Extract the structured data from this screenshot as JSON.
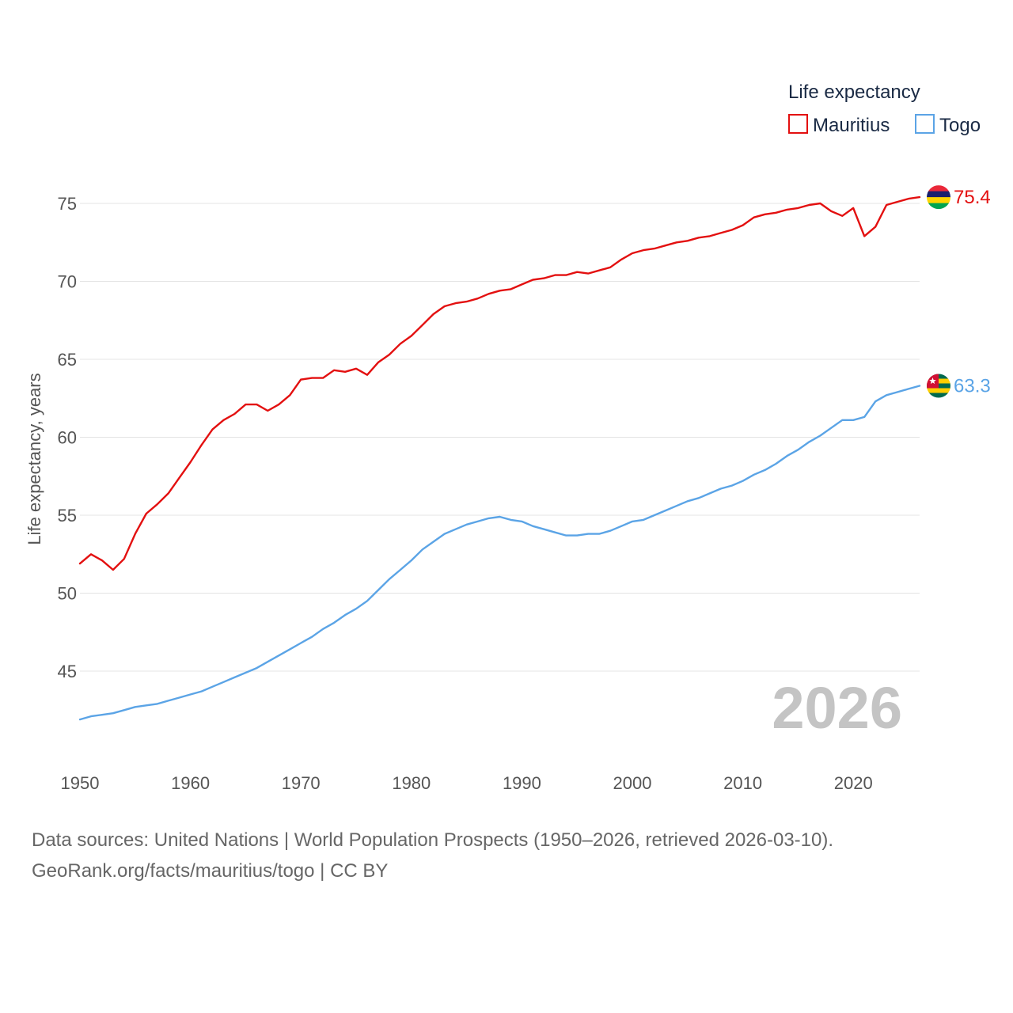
{
  "chart_data": {
    "type": "line",
    "title": "",
    "ylabel": "Life expectancy, years",
    "xlabel": "",
    "xlim": [
      1950,
      2026
    ],
    "ylim": [
      40,
      77
    ],
    "y_ticks": [
      45,
      50,
      55,
      60,
      65,
      70,
      75
    ],
    "x_ticks": [
      1950,
      1960,
      1970,
      1980,
      1990,
      2000,
      2010,
      2020
    ],
    "grid": "horizontal",
    "legend": {
      "title": "Life expectancy",
      "placement": "top-right"
    },
    "year_label": "2026",
    "series": [
      {
        "name": "Mauritius",
        "color": "#e31010",
        "end_label": "75.4",
        "flag": "mauritius-flag",
        "x": [
          1950,
          1951,
          1952,
          1953,
          1954,
          1955,
          1956,
          1957,
          1958,
          1959,
          1960,
          1961,
          1962,
          1963,
          1964,
          1965,
          1966,
          1967,
          1968,
          1969,
          1970,
          1971,
          1972,
          1973,
          1974,
          1975,
          1976,
          1977,
          1978,
          1979,
          1980,
          1981,
          1982,
          1983,
          1984,
          1985,
          1986,
          1987,
          1988,
          1989,
          1990,
          1991,
          1992,
          1993,
          1994,
          1995,
          1996,
          1997,
          1998,
          1999,
          2000,
          2001,
          2002,
          2003,
          2004,
          2005,
          2006,
          2007,
          2008,
          2009,
          2010,
          2011,
          2012,
          2013,
          2014,
          2015,
          2016,
          2017,
          2018,
          2019,
          2020,
          2021,
          2022,
          2023,
          2024,
          2025,
          2026
        ],
        "values": [
          51.9,
          52.5,
          52.1,
          51.5,
          52.2,
          53.8,
          55.1,
          55.7,
          56.4,
          57.4,
          58.4,
          59.5,
          60.5,
          61.1,
          61.5,
          62.1,
          62.1,
          61.7,
          62.1,
          62.7,
          63.7,
          63.8,
          63.8,
          64.3,
          64.2,
          64.4,
          64.0,
          64.8,
          65.3,
          66.0,
          66.5,
          67.2,
          67.9,
          68.4,
          68.6,
          68.7,
          68.9,
          69.2,
          69.4,
          69.5,
          69.8,
          70.1,
          70.2,
          70.4,
          70.4,
          70.6,
          70.5,
          70.7,
          70.9,
          71.4,
          71.8,
          72.0,
          72.1,
          72.3,
          72.5,
          72.6,
          72.8,
          72.9,
          73.1,
          73.3,
          73.6,
          74.1,
          74.3,
          74.4,
          74.6,
          74.7,
          74.9,
          75.0,
          74.5,
          74.2,
          74.7,
          72.9,
          73.5,
          74.9,
          75.1,
          75.3,
          75.4
        ]
      },
      {
        "name": "Togo",
        "color": "#5ba4e6",
        "end_label": "63.3",
        "flag": "togo-flag",
        "x": [
          1950,
          1951,
          1952,
          1953,
          1954,
          1955,
          1956,
          1957,
          1958,
          1959,
          1960,
          1961,
          1962,
          1963,
          1964,
          1965,
          1966,
          1967,
          1968,
          1969,
          1970,
          1971,
          1972,
          1973,
          1974,
          1975,
          1976,
          1977,
          1978,
          1979,
          1980,
          1981,
          1982,
          1983,
          1984,
          1985,
          1986,
          1987,
          1988,
          1989,
          1990,
          1991,
          1992,
          1993,
          1994,
          1995,
          1996,
          1997,
          1998,
          1999,
          2000,
          2001,
          2002,
          2003,
          2004,
          2005,
          2006,
          2007,
          2008,
          2009,
          2010,
          2011,
          2012,
          2013,
          2014,
          2015,
          2016,
          2017,
          2018,
          2019,
          2020,
          2021,
          2022,
          2023,
          2024,
          2025,
          2026
        ],
        "values": [
          41.9,
          42.1,
          42.2,
          42.3,
          42.5,
          42.7,
          42.8,
          42.9,
          43.1,
          43.3,
          43.5,
          43.7,
          44.0,
          44.3,
          44.6,
          44.9,
          45.2,
          45.6,
          46.0,
          46.4,
          46.8,
          47.2,
          47.7,
          48.1,
          48.6,
          49.0,
          49.5,
          50.2,
          50.9,
          51.5,
          52.1,
          52.8,
          53.3,
          53.8,
          54.1,
          54.4,
          54.6,
          54.8,
          54.9,
          54.7,
          54.6,
          54.3,
          54.1,
          53.9,
          53.7,
          53.7,
          53.8,
          53.8,
          54.0,
          54.3,
          54.6,
          54.7,
          55.0,
          55.3,
          55.6,
          55.9,
          56.1,
          56.4,
          56.7,
          56.9,
          57.2,
          57.6,
          57.9,
          58.3,
          58.8,
          59.2,
          59.7,
          60.1,
          60.6,
          61.1,
          61.1,
          61.3,
          62.3,
          62.7,
          62.9,
          63.1,
          63.3
        ]
      }
    ]
  },
  "footer": {
    "source_line": "Data sources: United Nations | World Population Prospects (1950–2026, retrieved 2026-03-10).",
    "credit_line": "GeoRank.org/facts/mauritius/togo | CC BY"
  }
}
